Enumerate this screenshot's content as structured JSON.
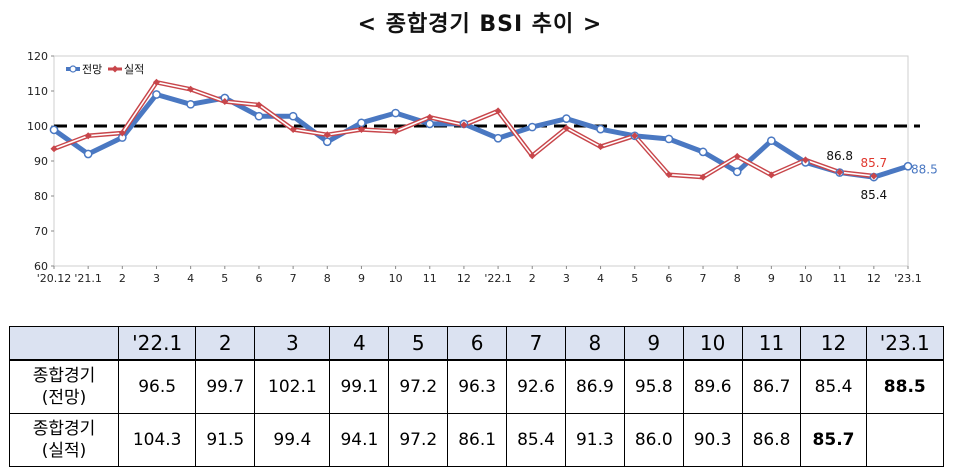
{
  "title": "< 종합경기 BSI 추이 >",
  "chart_data": {
    "type": "line",
    "categories": [
      "'20.12",
      "'21.1",
      "2",
      "3",
      "4",
      "5",
      "6",
      "7",
      "8",
      "9",
      "10",
      "11",
      "12",
      "'22.1",
      "2",
      "3",
      "4",
      "5",
      "6",
      "7",
      "8",
      "9",
      "10",
      "11",
      "12",
      "'23.1"
    ],
    "series": [
      {
        "name": "전망",
        "color": "#4a78c2",
        "values": [
          98.9,
          92.0,
          96.7,
          109.0,
          106.2,
          108.0,
          102.8,
          102.8,
          95.5,
          100.9,
          103.7,
          100.6,
          100.6,
          96.5,
          99.7,
          102.1,
          99.1,
          97.2,
          96.3,
          92.6,
          86.9,
          95.8,
          89.6,
          86.7,
          85.4,
          88.5
        ]
      },
      {
        "name": "실적",
        "color": "#c8464b",
        "values": [
          93.5,
          97.2,
          98.0,
          112.5,
          110.5,
          107.0,
          106.0,
          99.0,
          97.5,
          99.0,
          98.5,
          102.5,
          100.3,
          104.3,
          91.5,
          99.4,
          94.1,
          97.2,
          86.1,
          85.4,
          91.3,
          86.0,
          90.3,
          86.8,
          85.7,
          null
        ]
      }
    ],
    "ylim": [
      60,
      120
    ],
    "yticks": [
      "60",
      "70",
      "80",
      "90",
      "100",
      "110",
      "120"
    ],
    "reference_line": 100,
    "legend": "top-left",
    "annotations": [
      {
        "text": "86.8",
        "color": "#111111"
      },
      {
        "text": "85.7",
        "color": "#e0382e"
      },
      {
        "text": "85.4",
        "color": "#111111"
      },
      {
        "text": "88.5",
        "color": "#4a78c2"
      }
    ]
  },
  "table": {
    "headers": [
      "'22.1",
      "2",
      "3",
      "4",
      "5",
      "6",
      "7",
      "8",
      "9",
      "10",
      "11",
      "12",
      "'23.1"
    ],
    "rows": [
      {
        "label_line1": "종합경기",
        "label_line2": "(전망)",
        "values": [
          "96.5",
          "99.7",
          "102.1",
          "99.1",
          "97.2",
          "96.3",
          "92.6",
          "86.9",
          "95.8",
          "89.6",
          "86.7",
          "85.4",
          "88.5"
        ]
      },
      {
        "label_line1": "종합경기",
        "label_line2": "(실적)",
        "values": [
          "104.3",
          "91.5",
          "99.4",
          "94.1",
          "97.2",
          "86.1",
          "85.4",
          "91.3",
          "86.0",
          "90.3",
          "86.8",
          "85.7",
          ""
        ]
      }
    ]
  }
}
